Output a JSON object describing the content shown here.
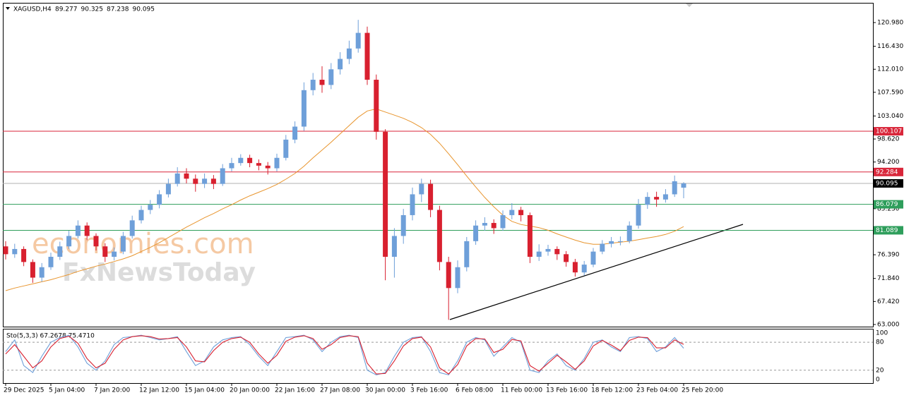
{
  "chart_data": [
    {
      "type": "candlestick",
      "title": "XAGUSD,H4",
      "header_values": [
        89.277,
        90.325,
        87.238,
        90.095
      ],
      "watermark": [
        "economies.com",
        "FxNewsToday"
      ],
      "categories": [
        "29 Dec 2025",
        null,
        null,
        null,
        null,
        "5 Jan 04:00",
        null,
        null,
        null,
        null,
        "7 Jan 20:00",
        null,
        null,
        null,
        null,
        "12 Jan 12:00",
        null,
        null,
        null,
        null,
        "15 Jan 04:00",
        null,
        null,
        null,
        null,
        "20 Jan 00:00",
        null,
        null,
        null,
        null,
        "22 Jan 16:00",
        null,
        null,
        null,
        null,
        "27 Jan 08:00",
        null,
        null,
        null,
        null,
        "30 Jan 00:00",
        null,
        null,
        null,
        null,
        "3 Feb 16:00",
        null,
        null,
        null,
        null,
        "6 Feb 08:00",
        null,
        null,
        null,
        null,
        "11 Feb 00:00",
        null,
        null,
        null,
        null,
        "13 Feb 16:00",
        null,
        null,
        null,
        null,
        "18 Feb 12:00",
        null,
        null,
        null,
        null,
        "23 Feb 04:00",
        null,
        null,
        null,
        null,
        "25 Feb 20:00"
      ],
      "open": [
        78,
        76.5,
        77.5,
        75,
        72,
        74,
        76,
        78,
        80,
        82,
        80,
        78,
        76,
        77,
        80,
        83,
        85,
        86,
        88,
        90,
        92,
        91,
        90,
        91,
        90,
        93,
        94,
        95,
        94,
        93.5,
        93,
        95,
        98.5,
        101,
        108,
        110,
        109,
        112,
        114,
        116,
        119,
        110,
        100,
        76,
        80,
        84,
        88,
        90,
        85,
        75,
        70,
        74,
        79,
        82,
        82.5,
        81.5,
        84,
        85,
        84,
        76,
        77,
        77.5,
        76.5,
        75,
        73,
        74.5,
        77,
        78.5,
        79,
        79,
        82,
        86,
        87.5,
        87,
        88,
        89.277
      ],
      "high": [
        79,
        78.5,
        78,
        75.5,
        74.8,
        76.8,
        78.9,
        81,
        83,
        82.6,
        80.5,
        78.6,
        77.8,
        80.8,
        83.9,
        85.8,
        86.9,
        88.8,
        91,
        93.2,
        93,
        91.8,
        92,
        91.7,
        93.8,
        95,
        95.7,
        95.6,
        94.7,
        94.2,
        95.8,
        99.4,
        102,
        109.5,
        111.3,
        112.6,
        113.2,
        115.3,
        117.5,
        121.5,
        120.2,
        111,
        100.5,
        81.5,
        85.2,
        89.3,
        91,
        90.8,
        85.8,
        76,
        75.3,
        79.8,
        83,
        83.6,
        83.2,
        84.9,
        86.3,
        85.6,
        84.5,
        78.4,
        78.3,
        78,
        77.1,
        75.6,
        75.2,
        77.7,
        79.2,
        79.8,
        79.9,
        82.8,
        87.1,
        88.4,
        88.5,
        89,
        91.6,
        90.325
      ],
      "low": [
        75.5,
        75.8,
        74.2,
        71,
        71.2,
        73.5,
        75.4,
        77.5,
        79.5,
        79.2,
        77.2,
        75,
        75.3,
        76.5,
        79.5,
        82.4,
        84.2,
        85.3,
        87.4,
        89.5,
        90.1,
        88.5,
        89.2,
        89,
        89.6,
        92.4,
        93.5,
        93.2,
        92.6,
        91.8,
        92.4,
        94.5,
        97.8,
        100.2,
        107,
        107.5,
        108.2,
        111,
        113,
        115.2,
        109,
        98.5,
        71.5,
        72,
        78.5,
        83,
        86.5,
        83.6,
        73.4,
        63.9,
        69,
        73.2,
        78.3,
        81,
        80.4,
        81,
        83.2,
        82.8,
        74.8,
        75.2,
        76.2,
        75.4,
        74.1,
        72.2,
        72.4,
        74,
        76.5,
        77.8,
        78.2,
        78.6,
        81.4,
        85.2,
        85.6,
        86.4,
        87.5,
        87.238
      ],
      "close": [
        76.5,
        77.5,
        75,
        72,
        74,
        76,
        78,
        80,
        82,
        80,
        78,
        76,
        77,
        80,
        83,
        85,
        86,
        88,
        90,
        92,
        91,
        90,
        91,
        90,
        93,
        94,
        95,
        94,
        93.5,
        93,
        95,
        98.5,
        101,
        108,
        110,
        109,
        112,
        114,
        116,
        119,
        110,
        100,
        76,
        80,
        84,
        88,
        90,
        85,
        75,
        70,
        74,
        79,
        82,
        82.5,
        81.5,
        84,
        85,
        84,
        76,
        77,
        77.5,
        76.5,
        75,
        73,
        74.5,
        77,
        78.5,
        79,
        79,
        82,
        86,
        87.5,
        87,
        88,
        90.5,
        90.095
      ],
      "up_color": "#6e9fd9",
      "down_color": "#d8202f",
      "ma": {
        "color": "#e8952e",
        "values": [
          69.5,
          70,
          70.4,
          70.8,
          71.2,
          71.6,
          72.1,
          72.6,
          73.2,
          73.7,
          74.2,
          74.6,
          75.1,
          75.6,
          76.2,
          77,
          77.8,
          78.7,
          79.7,
          80.7,
          81.7,
          82.6,
          83.5,
          84.3,
          85.2,
          86,
          86.9,
          87.7,
          88.4,
          89.1,
          89.9,
          90.9,
          92,
          93.4,
          95,
          96.5,
          98,
          99.6,
          101.2,
          102.8,
          104,
          104.4,
          103.8,
          103.2,
          102.6,
          101.8,
          100.8,
          99.5,
          97.8,
          95.8,
          93.7,
          91.5,
          89.4,
          87.4,
          85.6,
          84,
          82.8,
          82.2,
          81.9,
          81.6,
          81.1,
          80.4,
          79.8,
          79.2,
          78.7,
          78.4,
          78.4,
          78.6,
          78.8,
          79,
          79.3,
          79.6,
          79.9,
          80.3,
          80.9,
          81.8
        ]
      },
      "levels": [
        {
          "value": 100.107,
          "color": "#d9263a"
        },
        {
          "value": 92.284,
          "color": "#d9263a"
        },
        {
          "value": 90.095,
          "color": "#000000",
          "line_color": "#b0b0b0"
        },
        {
          "value": 86.079,
          "color": "#2e9e5b"
        },
        {
          "value": 81.089,
          "color": "#2e9e5b"
        }
      ],
      "ylim": [
        62.59,
        124.77
      ],
      "yticks": [
        {
          "value": 120.98,
          "label": "120.980"
        },
        {
          "value": 116.43,
          "label": "116.430"
        },
        {
          "value": 112.01,
          "label": "112.010"
        },
        {
          "value": 107.59,
          "label": "107.590"
        },
        {
          "value": 103.04,
          "label": "103.040"
        },
        {
          "value": 98.62,
          "label": "98.620"
        },
        {
          "value": 94.2,
          "label": "94.200"
        },
        {
          "value": 85.23,
          "label": "85.230"
        },
        {
          "value": 76.39,
          "label": "76.390"
        },
        {
          "value": 71.84,
          "label": "71.840"
        },
        {
          "value": 67.42,
          "label": "67.420"
        },
        {
          "value": 63,
          "label": "63.000"
        }
      ]
    },
    {
      "type": "line",
      "title": "Sto(5,3,3) 67.2678 75.4710",
      "series": [
        {
          "color": "#6e9fd9",
          "values": [
            60,
            85,
            30,
            15,
            50,
            80,
            90,
            95,
            70,
            35,
            20,
            40,
            75,
            90,
            92,
            95,
            90,
            85,
            88,
            92,
            60,
            30,
            40,
            70,
            85,
            90,
            92,
            75,
            50,
            30,
            60,
            90,
            92,
            95,
            85,
            60,
            80,
            92,
            95,
            90,
            20,
            10,
            15,
            50,
            80,
            90,
            92,
            60,
            15,
            10,
            40,
            80,
            90,
            85,
            50,
            70,
            90,
            80,
            20,
            15,
            40,
            55,
            30,
            20,
            45,
            80,
            85,
            70,
            60,
            90,
            92,
            88,
            60,
            70,
            90,
            67.27
          ]
        },
        {
          "color": "#d8202f",
          "values": [
            55,
            75,
            50,
            25,
            40,
            70,
            88,
            93,
            78,
            45,
            25,
            35,
            65,
            85,
            92,
            94,
            92,
            87,
            88,
            90,
            70,
            40,
            38,
            62,
            80,
            88,
            91,
            80,
            55,
            35,
            52,
            82,
            91,
            94,
            88,
            65,
            75,
            90,
            94,
            92,
            35,
            12,
            13,
            40,
            72,
            88,
            91,
            70,
            25,
            12,
            32,
            72,
            88,
            87,
            58,
            65,
            86,
            83,
            30,
            18,
            35,
            52,
            38,
            22,
            40,
            72,
            84,
            74,
            62,
            84,
            91,
            90,
            68,
            68,
            85,
            75.47
          ]
        }
      ],
      "ylim": [
        -7.6,
        109
      ],
      "yticks": [
        100,
        80,
        20,
        0
      ]
    }
  ]
}
